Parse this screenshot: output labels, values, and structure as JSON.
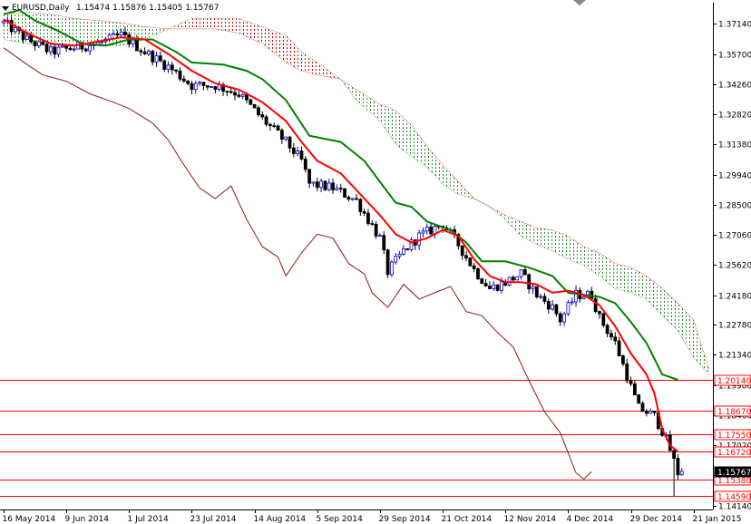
{
  "window": {
    "title": "EURUSD,Daily",
    "ohlc": "1.15474 1.15876 1.15405 1.15767"
  },
  "colors": {
    "background": "#ffffff",
    "axis": "#000000",
    "candle_up": "#0000c8",
    "candle_down": "#000000",
    "tenkan": "#ff0000",
    "kijun": "#008000",
    "chikou": "#8b1a1a",
    "cloud_bear": "#d40000",
    "cloud_bull": "#2e8b2e",
    "hline": "#ff0000",
    "price_label_bg": "#ffffff",
    "current_label_bg": "#000000",
    "current_label_fg": "#ffffff"
  },
  "chart_data": {
    "type": "candlestick",
    "title": "EURUSD,Daily 1.15474 1.15876 1.15405 1.15767",
    "y_axis_side": "right",
    "ylim": [
      1.13946,
      1.38152
    ],
    "xlim": [
      0,
      180
    ],
    "y_ticks": [
      "1.37140",
      "1.35700",
      "1.34260",
      "1.32820",
      "1.31380",
      "1.29940",
      "1.28500",
      "1.27060",
      "1.25620",
      "1.24180",
      "1.22780",
      "1.21340",
      "1.19900",
      "1.18460",
      "1.17020",
      "1.15580",
      "1.14140"
    ],
    "x_ticks": [
      {
        "i": 0,
        "label": "16 May 2014"
      },
      {
        "i": 16,
        "label": "9 Jun 2014"
      },
      {
        "i": 32,
        "label": "1 Jul 2014"
      },
      {
        "i": 48,
        "label": "23 Jul 2014"
      },
      {
        "i": 64,
        "label": "14 Aug 2014"
      },
      {
        "i": 80,
        "label": "5 Sep 2014"
      },
      {
        "i": 96,
        "label": "29 Sep 2014"
      },
      {
        "i": 112,
        "label": "21 Oct 2014"
      },
      {
        "i": 128,
        "label": "12 Nov 2014"
      },
      {
        "i": 144,
        "label": "4 Dec 2014"
      },
      {
        "i": 160,
        "label": "29 Dec 2014"
      },
      {
        "i": 176,
        "label": "21 Jan 2015"
      }
    ],
    "horizontal_levels": [
      {
        "value": 1.2014,
        "label": "1.20140"
      },
      {
        "value": 1.1867,
        "label": "1.18670"
      },
      {
        "value": 1.1755,
        "label": "1.17550"
      },
      {
        "value": 1.1672,
        "label": "1.16720"
      },
      {
        "value": 1.1538,
        "label": "1.15380"
      },
      {
        "value": 1.1459,
        "label": "1.14590"
      }
    ],
    "current_price": {
      "value": 1.15767,
      "label": "1.15767"
    },
    "close_path": [
      [
        0,
        1.372
      ],
      [
        6,
        1.364
      ],
      [
        12,
        1.358
      ],
      [
        18,
        1.36
      ],
      [
        24,
        1.362
      ],
      [
        30,
        1.366
      ],
      [
        36,
        1.358
      ],
      [
        42,
        1.351
      ],
      [
        48,
        1.342
      ],
      [
        54,
        1.342
      ],
      [
        60,
        1.338
      ],
      [
        66,
        1.326
      ],
      [
        72,
        1.315
      ],
      [
        76,
        1.306
      ],
      [
        78,
        1.295
      ],
      [
        84,
        1.293
      ],
      [
        90,
        1.287
      ],
      [
        96,
        1.269
      ],
      [
        98,
        1.253
      ],
      [
        102,
        1.263
      ],
      [
        106,
        1.27
      ],
      [
        110,
        1.274
      ],
      [
        112,
        1.276
      ],
      [
        116,
        1.266
      ],
      [
        120,
        1.254
      ],
      [
        124,
        1.245
      ],
      [
        128,
        1.248
      ],
      [
        132,
        1.252
      ],
      [
        136,
        1.242
      ],
      [
        140,
        1.236
      ],
      [
        142,
        1.23
      ],
      [
        146,
        1.242
      ],
      [
        150,
        1.242
      ],
      [
        152,
        1.231
      ],
      [
        156,
        1.219
      ],
      [
        160,
        1.198
      ],
      [
        162,
        1.188
      ],
      [
        166,
        1.184
      ],
      [
        168,
        1.177
      ],
      [
        170,
        1.168
      ],
      [
        172,
        1.157
      ],
      [
        173,
        1.1577
      ]
    ],
    "tenkan_sen": [
      [
        0,
        1.3735
      ],
      [
        6,
        1.367
      ],
      [
        12,
        1.362
      ],
      [
        18,
        1.361
      ],
      [
        24,
        1.363
      ],
      [
        30,
        1.365
      ],
      [
        36,
        1.364
      ],
      [
        42,
        1.357
      ],
      [
        48,
        1.349
      ],
      [
        54,
        1.343
      ],
      [
        60,
        1.34
      ],
      [
        66,
        1.334
      ],
      [
        72,
        1.325
      ],
      [
        76,
        1.315
      ],
      [
        80,
        1.306
      ],
      [
        86,
        1.3
      ],
      [
        90,
        1.292
      ],
      [
        96,
        1.28
      ],
      [
        100,
        1.271
      ],
      [
        104,
        1.267
      ],
      [
        108,
        1.269
      ],
      [
        112,
        1.273
      ],
      [
        116,
        1.27
      ],
      [
        120,
        1.259
      ],
      [
        124,
        1.251
      ],
      [
        128,
        1.248
      ],
      [
        132,
        1.248
      ],
      [
        136,
        1.247
      ],
      [
        140,
        1.243
      ],
      [
        144,
        1.244
      ],
      [
        148,
        1.242
      ],
      [
        152,
        1.237
      ],
      [
        156,
        1.227
      ],
      [
        160,
        1.214
      ],
      [
        164,
        1.204
      ],
      [
        166,
        1.195
      ],
      [
        168,
        1.178
      ],
      [
        170,
        1.17
      ],
      [
        172,
        1.1672
      ]
    ],
    "kijun_sen": [
      [
        0,
        1.376
      ],
      [
        4,
        1.378
      ],
      [
        8,
        1.373
      ],
      [
        14,
        1.368
      ],
      [
        20,
        1.362
      ],
      [
        26,
        1.361
      ],
      [
        32,
        1.364
      ],
      [
        38,
        1.364
      ],
      [
        44,
        1.358
      ],
      [
        48,
        1.353
      ],
      [
        56,
        1.352
      ],
      [
        62,
        1.349
      ],
      [
        66,
        1.345
      ],
      [
        72,
        1.335
      ],
      [
        78,
        1.318
      ],
      [
        86,
        1.315
      ],
      [
        92,
        1.306
      ],
      [
        96,
        1.296
      ],
      [
        100,
        1.286
      ],
      [
        104,
        1.284
      ],
      [
        108,
        1.277
      ],
      [
        114,
        1.273
      ],
      [
        118,
        1.267
      ],
      [
        122,
        1.258
      ],
      [
        128,
        1.258
      ],
      [
        134,
        1.255
      ],
      [
        140,
        1.251
      ],
      [
        144,
        1.243
      ],
      [
        148,
        1.242
      ],
      [
        152,
        1.241
      ],
      [
        156,
        1.238
      ],
      [
        160,
        1.229
      ],
      [
        164,
        1.219
      ],
      [
        168,
        1.204
      ],
      [
        172,
        1.2014
      ]
    ],
    "chikou_span": [
      [
        0,
        1.36
      ],
      [
        6,
        1.352
      ],
      [
        10,
        1.347
      ],
      [
        16,
        1.344
      ],
      [
        22,
        1.338
      ],
      [
        28,
        1.334
      ],
      [
        32,
        1.331
      ],
      [
        38,
        1.324
      ],
      [
        42,
        1.316
      ],
      [
        46,
        1.304
      ],
      [
        50,
        1.293
      ],
      [
        54,
        1.288
      ],
      [
        58,
        1.294
      ],
      [
        62,
        1.278
      ],
      [
        66,
        1.265
      ],
      [
        70,
        1.26
      ],
      [
        72,
        1.251
      ],
      [
        76,
        1.262
      ],
      [
        80,
        1.271
      ],
      [
        84,
        1.269
      ],
      [
        88,
        1.257
      ],
      [
        92,
        1.252
      ],
      [
        94,
        1.243
      ],
      [
        98,
        1.236
      ],
      [
        102,
        1.247
      ],
      [
        106,
        1.24
      ],
      [
        110,
        1.243
      ],
      [
        114,
        1.246
      ],
      [
        118,
        1.234
      ],
      [
        122,
        1.232
      ],
      [
        126,
        1.224
      ],
      [
        130,
        1.217
      ],
      [
        134,
        1.201
      ],
      [
        138,
        1.186
      ],
      [
        142,
        1.176
      ],
      [
        146,
        1.157
      ],
      [
        148,
        1.154
      ],
      [
        150,
        1.1575
      ]
    ],
    "senkou_span_a": [
      [
        0,
        1.376
      ],
      [
        6,
        1.377
      ],
      [
        12,
        1.376
      ],
      [
        18,
        1.374
      ],
      [
        24,
        1.373
      ],
      [
        30,
        1.372
      ],
      [
        36,
        1.37
      ],
      [
        42,
        1.369
      ],
      [
        48,
        1.369
      ],
      [
        54,
        1.369
      ],
      [
        60,
        1.367
      ],
      [
        66,
        1.362
      ],
      [
        72,
        1.353
      ],
      [
        76,
        1.349
      ],
      [
        80,
        1.347
      ],
      [
        86,
        1.345
      ],
      [
        90,
        1.34
      ],
      [
        96,
        1.333
      ],
      [
        100,
        1.33
      ],
      [
        104,
        1.323
      ],
      [
        108,
        1.313
      ],
      [
        112,
        1.304
      ],
      [
        116,
        1.296
      ],
      [
        120,
        1.288
      ],
      [
        124,
        1.284
      ],
      [
        128,
        1.28
      ],
      [
        132,
        1.277
      ],
      [
        136,
        1.274
      ],
      [
        140,
        1.273
      ],
      [
        144,
        1.27
      ],
      [
        148,
        1.265
      ],
      [
        152,
        1.262
      ],
      [
        156,
        1.257
      ],
      [
        160,
        1.255
      ],
      [
        164,
        1.251
      ],
      [
        168,
        1.245
      ],
      [
        172,
        1.238
      ],
      [
        176,
        1.23
      ],
      [
        180,
        1.206
      ]
    ],
    "senkou_span_b": [
      [
        0,
        1.364
      ],
      [
        6,
        1.362
      ],
      [
        12,
        1.361
      ],
      [
        18,
        1.361
      ],
      [
        24,
        1.361
      ],
      [
        30,
        1.361
      ],
      [
        36,
        1.364
      ],
      [
        42,
        1.369
      ],
      [
        48,
        1.374
      ],
      [
        54,
        1.374
      ],
      [
        60,
        1.374
      ],
      [
        66,
        1.37
      ],
      [
        72,
        1.366
      ],
      [
        76,
        1.358
      ],
      [
        80,
        1.353
      ],
      [
        86,
        1.345
      ],
      [
        90,
        1.335
      ],
      [
        96,
        1.325
      ],
      [
        100,
        1.314
      ],
      [
        104,
        1.308
      ],
      [
        108,
        1.303
      ],
      [
        112,
        1.295
      ],
      [
        116,
        1.29
      ],
      [
        120,
        1.288
      ],
      [
        124,
        1.284
      ],
      [
        128,
        1.278
      ],
      [
        132,
        1.27
      ],
      [
        136,
        1.266
      ],
      [
        140,
        1.263
      ],
      [
        144,
        1.259
      ],
      [
        148,
        1.256
      ],
      [
        152,
        1.251
      ],
      [
        156,
        1.245
      ],
      [
        160,
        1.243
      ],
      [
        164,
        1.24
      ],
      [
        168,
        1.232
      ],
      [
        172,
        1.225
      ],
      [
        176,
        1.212
      ],
      [
        180,
        1.204
      ]
    ]
  }
}
